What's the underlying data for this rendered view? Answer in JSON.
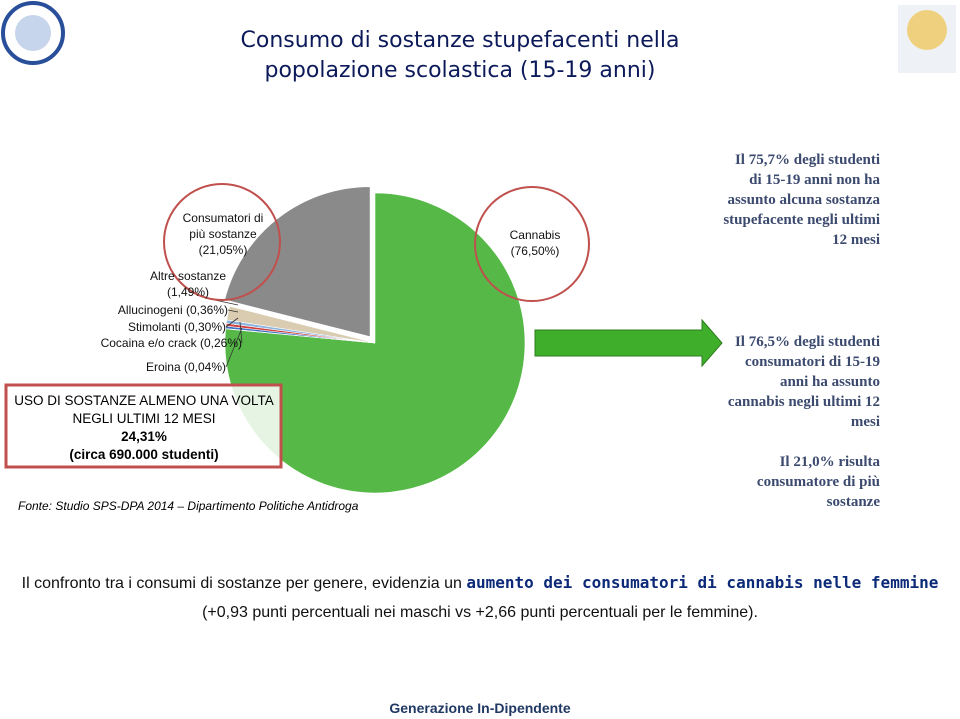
{
  "slide": {
    "title_lines": [
      "Consumo di sostanze stupefacenti nella",
      "popolazione scolastica (15-19 anni)"
    ],
    "callouts": [
      "Il 75,7% degli studenti di 15-19 anni non ha assunto alcuna sostanza stupefacente negli ultimi 12 mesi",
      "Il 76,5% degli studenti consumatori di 15-19 anni ha assunto cannabis negli ultimi 12 mesi",
      "Il 21,0% risulta consumatore di più sostanze"
    ],
    "box_lines": [
      "USO DI SOSTANZE ALMENO UNA VOLTA NEGLI ULTIMI 12 MESI",
      "24,31%",
      "(circa 690.000 studenti)"
    ],
    "source": "Fonte: Studio SPS-DPA 2014 – Dipartimento Politiche Antidroga",
    "text_before": "Il confronto tra i consumi di sostanze per genere, evidenzia un",
    "text_bold": "aumento dei consumatori di cannabis nelle femmine",
    "text_after": "(+0,93 punti percentuali nei maschi vs +2,66 punti percentuali per le femmine).",
    "footer": "Generazione In-Dipendente"
  },
  "chart_data": {
    "type": "pie",
    "categories": [
      "Cannabis",
      "Eroina",
      "Cocaina e/o crack",
      "Stimolanti",
      "Allucinogeni",
      "Altre sostanze",
      "Consumatori di più sostanze"
    ],
    "values": [
      76.5,
      0.04,
      0.26,
      0.3,
      0.36,
      1.49,
      21.05
    ],
    "value_labels": [
      "(76,50%)",
      "(0,04%)",
      "(0,26%)",
      "(0,30%)",
      "(0,36%)",
      "(1,49%)",
      "(21,05%)"
    ],
    "colors": [
      "#56b947",
      "#1f3a7a",
      "#3d6fc4",
      "#d0403a",
      "#8db3e0",
      "#d9ccb0",
      "#8a8a8a"
    ]
  }
}
